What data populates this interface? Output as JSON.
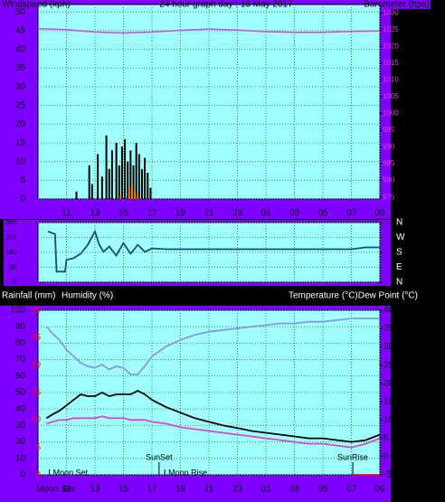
{
  "chart_data": [
    {
      "type": "line",
      "title": "24 hour graph day : 13 May 2017",
      "y_label": "Windspeed (kph)",
      "y2_label": "Barometer (hpa)",
      "xlim": [
        9,
        33
      ],
      "xticks": [
        11,
        13,
        15,
        17,
        19,
        21,
        23,
        {
          "value": 25,
          "label": "01"
        },
        {
          "value": 27,
          "label": "03"
        },
        {
          "value": 29,
          "label": "05"
        },
        {
          "value": 31,
          "label": "07"
        },
        {
          "value": 33,
          "label": "09"
        }
      ],
      "ylim": [
        0,
        52
      ],
      "yticks": [
        0,
        5,
        10,
        15,
        20,
        25,
        30,
        35,
        40,
        45,
        50
      ],
      "y2lim": [
        974.5,
        1032.5
      ],
      "y2ticks": [
        975,
        980,
        985,
        990,
        995,
        1000,
        1005,
        1010,
        1015,
        1020,
        1025,
        1030
      ],
      "grid": true,
      "series": [
        {
          "name": "Wind speed",
          "type": "bar",
          "color": "#000000",
          "x": [
            11.7,
            12.6,
            12.8,
            13.2,
            13.5,
            13.8,
            14.0,
            14.2,
            14.5,
            14.7,
            14.9,
            15.1,
            15.3,
            15.5,
            15.7,
            15.9,
            16.1,
            16.3,
            16.5,
            16.7,
            16.9
          ],
          "values": [
            2,
            9,
            4,
            12,
            6,
            17,
            8,
            13,
            15,
            9,
            14,
            16,
            10,
            13,
            9,
            15,
            12,
            8,
            11,
            7,
            3
          ]
        },
        {
          "name": "Gust",
          "type": "bar",
          "color": "#ff8000",
          "x": [
            14.8,
            15.4,
            15.6,
            15.8,
            16.0
          ],
          "values": [
            1,
            3,
            4,
            2,
            1
          ]
        },
        {
          "name": "Barometer",
          "type": "line",
          "axis": "y2",
          "color": "#e040e0",
          "x": [
            9,
            11,
            13,
            15,
            17,
            19,
            21,
            23,
            25,
            27,
            29,
            31,
            33
          ],
          "values": [
            1025.3,
            1025,
            1024.3,
            1024,
            1024.3,
            1024.8,
            1025.2,
            1024.9,
            1024.4,
            1024.2,
            1024.2,
            1024.5,
            1024.6
          ]
        }
      ]
    },
    {
      "type": "line",
      "xlim": [
        9,
        33
      ],
      "xticks": [
        11,
        13,
        15,
        17,
        19,
        21,
        23,
        25,
        27,
        29,
        31,
        33
      ],
      "ylim": [
        0,
        360
      ],
      "yticks": [
        0,
        90,
        180,
        270,
        360
      ],
      "y2lim": [
        0,
        360
      ],
      "y2ticks": [
        {
          "value": 0,
          "label": "N"
        },
        {
          "value": 90,
          "label": "E"
        },
        {
          "value": 180,
          "label": "S"
        },
        {
          "value": 270,
          "label": "W"
        },
        {
          "value": 360,
          "label": "N"
        }
      ],
      "grid": true,
      "series": [
        {
          "name": "Wind direction",
          "type": "line",
          "color": "#1a4a7a",
          "x": [
            9.7,
            10.2,
            10.3,
            10.9,
            11.0,
            11.5,
            12,
            12.5,
            13,
            13.3,
            13.6,
            14,
            14.5,
            15,
            15.5,
            16,
            16.5,
            17,
            18,
            31,
            32,
            33
          ],
          "values": [
            306,
            290,
            64,
            64,
            134,
            145,
            172,
            226,
            306,
            226,
            183,
            215,
            161,
            236,
            172,
            226,
            183,
            204,
            199,
            199,
            210,
            210
          ]
        }
      ]
    },
    {
      "type": "line",
      "y_label": "Rainfall (mm)",
      "y_label_2": "Humidity (%)",
      "y2_label": "Temperature (°C)Dew Point (°C)",
      "xlim": [
        9,
        33
      ],
      "xticks": [
        11,
        13,
        15,
        17,
        19,
        21,
        23,
        {
          "value": 25,
          "label": "01"
        },
        {
          "value": 27,
          "label": "03"
        },
        {
          "value": 29,
          "label": "05"
        },
        {
          "value": 31,
          "label": "07"
        },
        {
          "value": 33,
          "label": "09"
        }
      ],
      "ylim": [
        0,
        100
      ],
      "yticks": [
        0,
        10,
        20,
        30,
        40,
        50,
        60,
        70,
        80,
        90,
        100
      ],
      "y2lim": [
        -5,
        40
      ],
      "y2ticks": [
        -5,
        0,
        5,
        10,
        15,
        20,
        25,
        30,
        35,
        40
      ],
      "y3lim": [
        0,
        30
      ],
      "y3ticks": [
        0,
        5,
        10,
        15,
        20,
        25,
        30
      ],
      "y3color": "#ff0000",
      "grid": true,
      "series": [
        {
          "name": "Humidity",
          "type": "line",
          "color": "#9090f0",
          "x": [
            9.6,
            10,
            10.5,
            11,
            11.5,
            12,
            12.5,
            13,
            13.5,
            14,
            14.5,
            15,
            15.5,
            16,
            16.5,
            17,
            18,
            19,
            20,
            21,
            22,
            23,
            24,
            25,
            26,
            27,
            28,
            29,
            30,
            31,
            32,
            33
          ],
          "values": [
            90,
            86,
            82,
            76,
            72,
            68,
            66,
            65,
            67,
            64,
            66,
            65,
            61,
            61,
            66,
            72,
            78,
            82,
            85,
            87,
            88,
            89,
            90,
            91,
            92,
            92,
            93,
            93,
            94,
            95,
            95,
            95
          ]
        },
        {
          "name": "Temperature",
          "type": "line",
          "axis": "y2",
          "color": "#000000",
          "x": [
            9.6,
            10,
            10.5,
            11,
            11.5,
            12,
            12.5,
            13,
            13.5,
            14,
            14.5,
            15,
            15.5,
            16,
            16.5,
            17,
            18,
            19,
            20,
            21,
            22,
            23,
            24,
            25,
            26,
            27,
            28,
            29,
            30,
            31,
            32,
            33
          ],
          "values": [
            10.5,
            11.5,
            12.5,
            14,
            15.5,
            17,
            16.5,
            16.5,
            17.5,
            16.5,
            17,
            17,
            17,
            18,
            17,
            15.5,
            13.5,
            12,
            10.5,
            9.5,
            8.5,
            7.8,
            7,
            6.5,
            6,
            5.5,
            5,
            5,
            4.5,
            4,
            4.5,
            6
          ]
        },
        {
          "name": "Dew Point",
          "type": "line",
          "axis": "y2",
          "color": "#e040e0",
          "x": [
            9.6,
            10,
            10.5,
            11,
            11.5,
            12,
            12.5,
            13,
            13.5,
            14,
            14.5,
            15,
            15.5,
            16,
            16.5,
            17,
            18,
            19,
            20,
            21,
            22,
            23,
            24,
            25,
            26,
            27,
            28,
            29,
            30,
            31,
            32,
            33
          ],
          "values": [
            9,
            9.5,
            10,
            10,
            10.5,
            10.5,
            10.5,
            10.5,
            11,
            10.5,
            10.5,
            10.5,
            10,
            10,
            10,
            9.5,
            9,
            8,
            7.5,
            7,
            6.5,
            6,
            5.5,
            5,
            4.5,
            4,
            3.5,
            3.5,
            3,
            2.5,
            3.5,
            5
          ]
        },
        {
          "name": "Rainfall",
          "type": "line",
          "axis": "y3",
          "color": "#ff0000",
          "x": [
            31.2,
            33
          ],
          "values": [
            0,
            0
          ]
        }
      ],
      "annotations": [
        {
          "text": "Moon Set",
          "x": 9.8
        },
        {
          "text": "SunSet",
          "x": 17.5
        },
        {
          "text": "Moon Rise",
          "x": 17.9
        },
        {
          "text": "SunRise",
          "x": 31.1
        }
      ],
      "x_axis_note": "Moon Set"
    }
  ]
}
